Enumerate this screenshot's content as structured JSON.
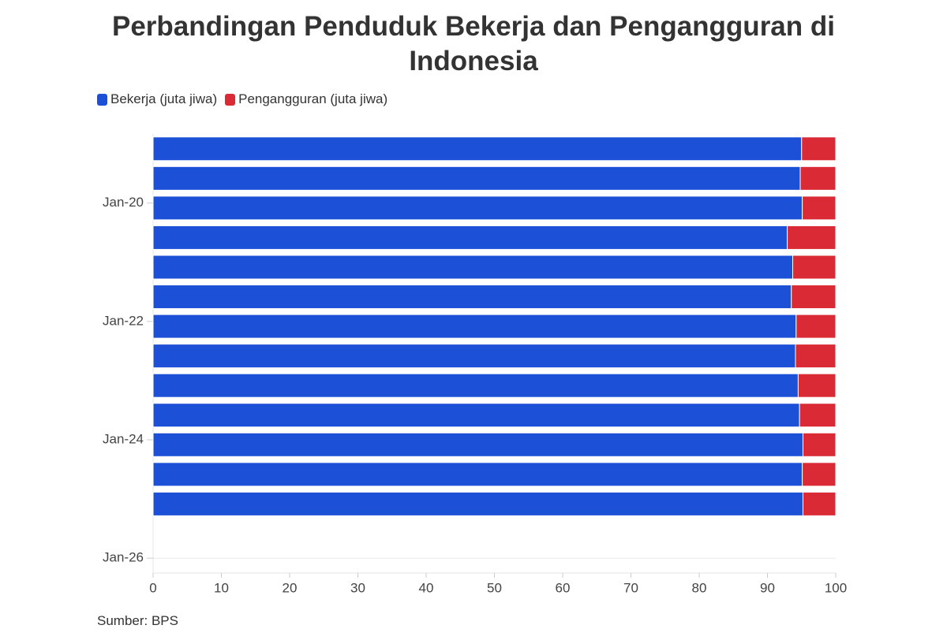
{
  "chart_data": {
    "type": "stacked-barh",
    "title": "Perbandingan Penduduk Bekerja dan Pengangguran di Indonesia",
    "source": "Sumber: BPS",
    "y": [
      "2019-02",
      "2019-08",
      "2020-02",
      "2020-08",
      "2021-02",
      "2021-08",
      "2022-02",
      "2022-08",
      "2023-02",
      "2023-08",
      "2024-02",
      "2024-08",
      "2025-02"
    ],
    "ylim": [
      "2018-11",
      "2026-04"
    ],
    "yticks": [
      {
        "value": "2020-01",
        "label": "Jan-20"
      },
      {
        "value": "2022-01",
        "label": "Jan-22"
      },
      {
        "value": "2024-01",
        "label": "Jan-24"
      },
      {
        "value": "2026-01",
        "label": "Jan-26"
      }
    ],
    "xlim": [
      0,
      100
    ],
    "xticks": [
      0,
      10,
      20,
      30,
      40,
      50,
      60,
      70,
      80,
      90,
      100
    ],
    "series": [
      {
        "name": "Bekerja (juta jiwa)",
        "color": "#1c50d6",
        "values": [
          95.0,
          94.8,
          95.1,
          92.9,
          93.7,
          93.5,
          94.2,
          94.1,
          94.5,
          94.7,
          95.2,
          95.1,
          95.2
        ]
      },
      {
        "name": "Pengangguran (juta jiwa)",
        "color": "#da2a36",
        "values": [
          5.0,
          5.2,
          4.9,
          7.1,
          6.3,
          6.5,
          5.8,
          5.9,
          5.5,
          5.3,
          4.8,
          4.9,
          4.8
        ]
      }
    ]
  }
}
